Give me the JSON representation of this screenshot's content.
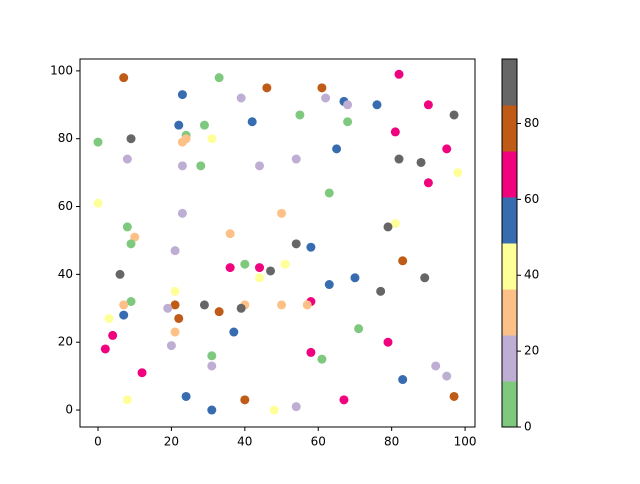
{
  "chart_data": {
    "type": "scatter",
    "x": [
      7,
      33,
      23,
      39,
      46,
      61,
      62,
      67,
      68,
      76,
      82,
      90,
      55,
      97,
      22,
      42,
      29,
      68,
      24,
      24,
      9,
      31,
      23,
      0,
      81,
      65,
      95,
      8,
      23,
      28,
      44,
      54,
      82,
      88,
      98,
      90,
      63,
      0,
      23,
      50,
      81,
      79,
      36,
      8,
      10,
      9,
      54,
      58,
      21,
      6,
      36,
      40,
      44,
      51,
      44,
      47,
      83,
      70,
      89,
      63,
      77,
      21,
      9,
      21,
      29,
      40,
      50,
      58,
      57,
      7,
      19,
      39,
      33,
      7,
      3,
      22,
      21,
      37,
      4,
      71,
      20,
      2,
      79,
      31,
      58,
      61,
      31,
      92,
      12,
      95,
      83,
      8,
      24,
      40,
      67,
      97,
      31,
      48,
      54
    ],
    "y": [
      98,
      98,
      93,
      92,
      95,
      95,
      92,
      91,
      90,
      90,
      99,
      90,
      87,
      87,
      84,
      85,
      84,
      85,
      81,
      80,
      80,
      80,
      79,
      79,
      82,
      77,
      77,
      74,
      72,
      72,
      72,
      74,
      74,
      73,
      70,
      67,
      64,
      61,
      58,
      58,
      55,
      54,
      52,
      54,
      51,
      49,
      49,
      48,
      47,
      40,
      42,
      43,
      42,
      43,
      39,
      41,
      44,
      39,
      39,
      37,
      35,
      35,
      32,
      31,
      31,
      31,
      31,
      32,
      31,
      31,
      30,
      30,
      29,
      28,
      27,
      27,
      23,
      23,
      22,
      24,
      19,
      18,
      20,
      16,
      17,
      15,
      13,
      13,
      11,
      10,
      9,
      3,
      4,
      3,
      3,
      4,
      0,
      0,
      1
    ],
    "c": [
      79,
      6,
      55,
      18,
      79,
      79,
      18,
      55,
      18,
      55,
      67,
      67,
      6,
      91,
      55,
      55,
      6,
      6,
      6,
      30,
      91,
      42,
      30,
      6,
      67,
      55,
      67,
      18,
      18,
      6,
      18,
      18,
      91,
      91,
      42,
      67,
      6,
      42,
      18,
      30,
      42,
      91,
      30,
      6,
      30,
      6,
      91,
      55,
      18,
      91,
      67,
      6,
      67,
      42,
      42,
      91,
      79,
      55,
      91,
      55,
      91,
      42,
      6,
      79,
      91,
      30,
      30,
      67,
      30,
      30,
      18,
      91,
      79,
      55,
      42,
      79,
      30,
      55,
      67,
      6,
      18,
      67,
      67,
      6,
      67,
      6,
      18,
      18,
      67,
      18,
      55,
      42,
      55,
      79,
      67,
      79,
      55,
      42,
      18
    ],
    "colormap": [
      "#7fc97f",
      "#beaed4",
      "#fdc086",
      "#ffff99",
      "#386cb0",
      "#f0027f",
      "#bf5b17",
      "#666666"
    ],
    "clim": [
      0,
      97
    ],
    "cticks": [
      0,
      20,
      40,
      60,
      80
    ],
    "xlim": [
      -4.9,
      102.7
    ],
    "xticks": [
      0,
      20,
      40,
      60,
      80,
      100
    ],
    "ylim": [
      -5,
      103.5
    ],
    "yticks": [
      0,
      20,
      40,
      60,
      80,
      100
    ]
  }
}
